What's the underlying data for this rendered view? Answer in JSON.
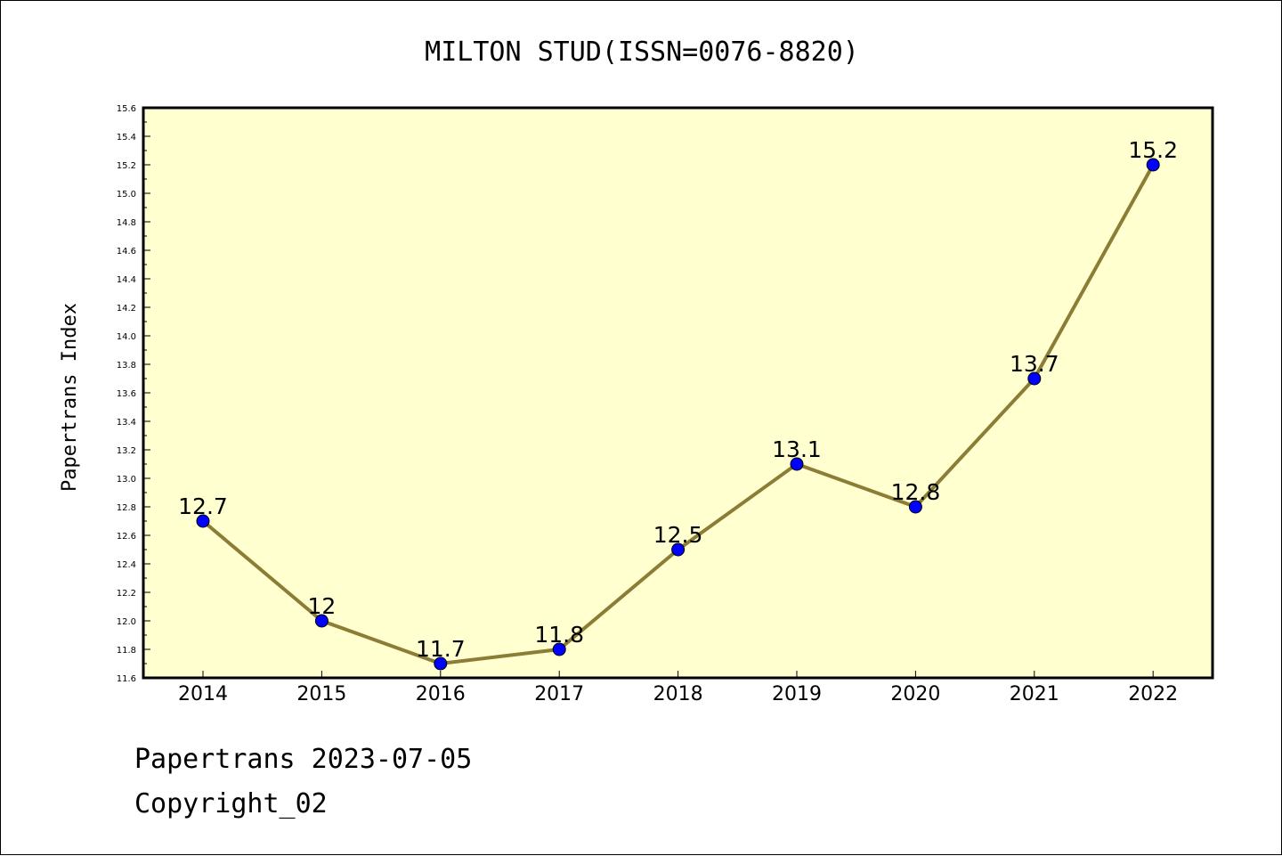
{
  "chart_data": {
    "type": "line",
    "title": "MILTON STUD(ISSN=0076-8820)",
    "xlabel": "",
    "ylabel": "Papertrans Index",
    "x": [
      "2014",
      "2015",
      "2016",
      "2017",
      "2018",
      "2019",
      "2020",
      "2021",
      "2022"
    ],
    "series": [
      {
        "values": [
          12.7,
          12.0,
          11.7,
          11.8,
          12.5,
          13.1,
          12.8,
          13.7,
          15.2
        ],
        "labels": [
          "12.7",
          "12",
          "11.7",
          "11.8",
          "12.5",
          "13.1",
          "12.8",
          "13.7",
          "15.2"
        ]
      }
    ],
    "ylim": [
      11.6,
      15.6
    ],
    "yticks": [
      "11.6",
      "11.8",
      "12.0",
      "12.2",
      "12.4",
      "12.6",
      "12.8",
      "13.0",
      "13.2",
      "13.4",
      "13.6",
      "13.8",
      "14.0",
      "14.2",
      "14.4",
      "14.6",
      "14.8",
      "15.0",
      "15.2",
      "15.4",
      "15.6"
    ],
    "grid": false,
    "legend": "none",
    "colors": {
      "plot_background": "#ffffd0",
      "line": "#8b7d35",
      "marker": "#0000ff"
    }
  },
  "footer": {
    "line1": "Papertrans 2023-07-05",
    "line2": "Copyright_02"
  }
}
